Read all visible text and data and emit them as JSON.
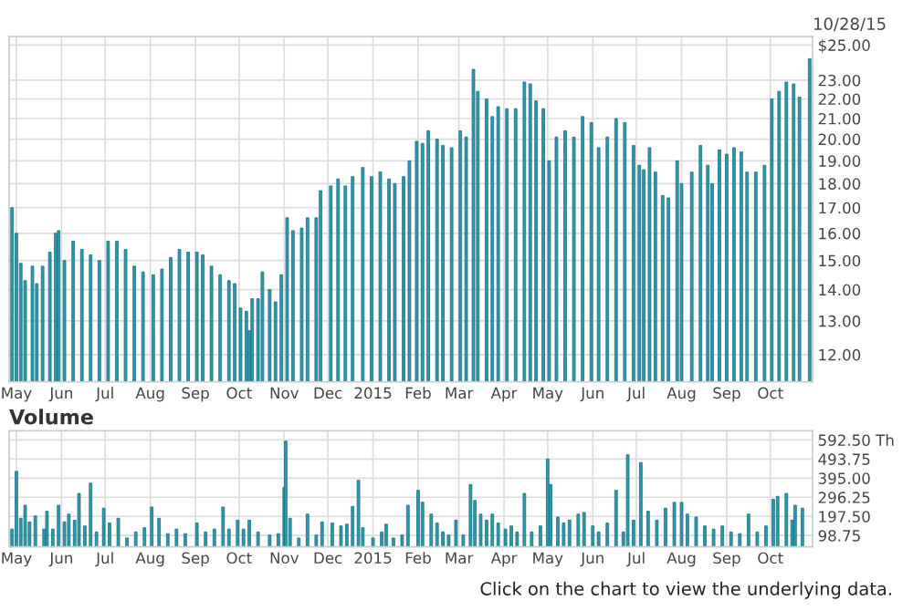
{
  "chart_data": [
    {
      "type": "bar",
      "color": "#2b9aad",
      "log": true,
      "grid": true,
      "annotations": [
        "10/28/15"
      ],
      "x": [
        "2014-04-28",
        "2014-05-01",
        "2014-05-04",
        "2014-05-07",
        "2014-05-12",
        "2014-05-15",
        "2014-05-19",
        "2014-05-24",
        "2014-05-28",
        "2014-05-30",
        "2014-06-03",
        "2014-06-09",
        "2014-06-15",
        "2014-06-21",
        "2014-06-27",
        "2014-07-03",
        "2014-07-09",
        "2014-07-15",
        "2014-07-21",
        "2014-07-27",
        "2014-08-03",
        "2014-08-09",
        "2014-08-15",
        "2014-08-21",
        "2014-08-27",
        "2014-09-02",
        "2014-09-06",
        "2014-09-12",
        "2014-09-18",
        "2014-09-24",
        "2014-09-28",
        "2014-10-02",
        "2014-10-06",
        "2014-10-08",
        "2014-10-10",
        "2014-10-14",
        "2014-10-17",
        "2014-10-22",
        "2014-10-26",
        "2014-10-30",
        "2014-11-03",
        "2014-11-07",
        "2014-11-13",
        "2014-11-17",
        "2014-11-23",
        "2014-11-26",
        "2014-12-03",
        "2014-12-08",
        "2014-12-13",
        "2014-12-18",
        "2014-12-25",
        "2014-12-31",
        "2015-01-06",
        "2015-01-12",
        "2015-01-16",
        "2015-01-22",
        "2015-01-26",
        "2015-01-31",
        "2015-02-04",
        "2015-02-08",
        "2015-02-14",
        "2015-02-18",
        "2015-02-24",
        "2015-03-02",
        "2015-03-06",
        "2015-03-11",
        "2015-03-14",
        "2015-03-20",
        "2015-03-24",
        "2015-03-28",
        "2015-04-03",
        "2015-04-09",
        "2015-04-15",
        "2015-04-19",
        "2015-04-23",
        "2015-04-28",
        "2015-05-02",
        "2015-05-07",
        "2015-05-13",
        "2015-05-19",
        "2015-05-25",
        "2015-05-31",
        "2015-06-05",
        "2015-06-11",
        "2015-06-17",
        "2015-06-23",
        "2015-06-29",
        "2015-07-03",
        "2015-07-06",
        "2015-07-10",
        "2015-07-14",
        "2015-07-19",
        "2015-07-23",
        "2015-07-29",
        "2015-08-01",
        "2015-08-08",
        "2015-08-14",
        "2015-08-19",
        "2015-08-22",
        "2015-08-27",
        "2015-09-01",
        "2015-09-06",
        "2015-09-11",
        "2015-09-15",
        "2015-09-21",
        "2015-09-27",
        "2015-10-02",
        "2015-10-07",
        "2015-10-12",
        "2015-10-17",
        "2015-10-21",
        "2015-10-28"
      ],
      "values": [
        17.0,
        16.0,
        14.9,
        14.3,
        14.8,
        14.2,
        14.8,
        15.3,
        16.0,
        16.1,
        15.0,
        15.7,
        15.4,
        15.2,
        15.0,
        15.7,
        15.7,
        15.4,
        14.8,
        14.6,
        14.5,
        14.7,
        15.1,
        15.4,
        15.3,
        15.3,
        15.2,
        14.8,
        14.5,
        14.3,
        14.2,
        13.4,
        13.3,
        12.7,
        13.7,
        13.7,
        14.6,
        14.0,
        13.6,
        14.5,
        16.6,
        16.1,
        16.2,
        16.6,
        16.6,
        17.7,
        17.9,
        18.2,
        17.9,
        18.3,
        18.7,
        18.3,
        18.5,
        18.2,
        18.0,
        18.3,
        19.0,
        19.9,
        19.8,
        20.4,
        20.0,
        19.7,
        19.6,
        20.4,
        20.1,
        23.6,
        22.4,
        22.0,
        21.1,
        21.6,
        21.5,
        21.5,
        22.9,
        22.8,
        21.9,
        21.5,
        19.0,
        20.1,
        20.4,
        20.1,
        21.1,
        20.8,
        19.6,
        20.1,
        21.0,
        20.8,
        19.7,
        18.8,
        18.6,
        19.6,
        18.5,
        17.5,
        17.4,
        19.0,
        18.0,
        18.5,
        19.7,
        18.8,
        18.0,
        19.5,
        19.3,
        19.6,
        19.4,
        18.5,
        18.5,
        18.8,
        22.0,
        22.4,
        22.9,
        22.8,
        22.1,
        24.2
      ],
      "xlim": [
        "2014-04-26",
        "2015-10-30"
      ],
      "xticks": [
        {
          "value": "2014-05-01",
          "label": "May"
        },
        {
          "value": "2014-06-01",
          "label": "Jun"
        },
        {
          "value": "2014-07-01",
          "label": "Jul"
        },
        {
          "value": "2014-08-01",
          "label": "Aug"
        },
        {
          "value": "2014-09-01",
          "label": "Sep"
        },
        {
          "value": "2014-10-01",
          "label": "Oct"
        },
        {
          "value": "2014-11-01",
          "label": "Nov"
        },
        {
          "value": "2014-12-01",
          "label": "Dec"
        },
        {
          "value": "2015-01-01",
          "label": "2015"
        },
        {
          "value": "2015-02-01",
          "label": "Feb"
        },
        {
          "value": "2015-03-01",
          "label": "Mar"
        },
        {
          "value": "2015-04-01",
          "label": "Apr"
        },
        {
          "value": "2015-05-01",
          "label": "May"
        },
        {
          "value": "2015-06-01",
          "label": "Jun"
        },
        {
          "value": "2015-07-01",
          "label": "Jul"
        },
        {
          "value": "2015-08-01",
          "label": "Aug"
        },
        {
          "value": "2015-09-01",
          "label": "Sep"
        },
        {
          "value": "2015-10-01",
          "label": "Oct"
        }
      ],
      "ylim": [
        11.25,
        25.5
      ],
      "yticks": [
        {
          "value": 25,
          "label": "$25.00"
        },
        {
          "value": 23,
          "label": "23.00"
        },
        {
          "value": 22,
          "label": "22.00"
        },
        {
          "value": 21,
          "label": "21.00"
        },
        {
          "value": 20,
          "label": "20.00"
        },
        {
          "value": 19,
          "label": "19.00"
        },
        {
          "value": 18,
          "label": "18.00"
        },
        {
          "value": 17,
          "label": "17.00"
        },
        {
          "value": 16,
          "label": "16.00"
        },
        {
          "value": 15,
          "label": "15.00"
        },
        {
          "value": 14,
          "label": "14.00"
        },
        {
          "value": 13,
          "label": "13.00"
        },
        {
          "value": 12,
          "label": "12.00"
        }
      ]
    },
    {
      "type": "bar",
      "title": "Volume",
      "color": "#2b9aad",
      "grid": true,
      "annotations": [
        "Click on the chart to view the underlying data."
      ],
      "x": [
        "2014-04-28",
        "2014-05-01",
        "2014-05-04",
        "2014-05-07",
        "2014-05-10",
        "2014-05-14",
        "2014-05-20",
        "2014-05-22",
        "2014-05-26",
        "2014-05-30",
        "2014-06-03",
        "2014-06-06",
        "2014-06-10",
        "2014-06-13",
        "2014-06-17",
        "2014-06-21",
        "2014-06-25",
        "2014-06-30",
        "2014-07-04",
        "2014-07-10",
        "2014-07-16",
        "2014-07-22",
        "2014-07-28",
        "2014-08-02",
        "2014-08-07",
        "2014-08-13",
        "2014-08-19",
        "2014-08-25",
        "2014-09-02",
        "2014-09-08",
        "2014-09-14",
        "2014-09-20",
        "2014-09-24",
        "2014-09-30",
        "2014-10-04",
        "2014-10-08",
        "2014-10-14",
        "2014-10-22",
        "2014-10-28",
        "2014-11-01",
        "2014-11-02",
        "2014-11-05",
        "2014-11-11",
        "2014-11-17",
        "2014-11-23",
        "2014-11-27",
        "2014-12-04",
        "2014-12-10",
        "2014-12-14",
        "2014-12-18",
        "2014-12-22",
        "2014-12-25",
        "2015-01-01",
        "2015-01-07",
        "2015-01-10",
        "2015-01-15",
        "2015-01-21",
        "2015-01-25",
        "2015-02-01",
        "2015-02-04",
        "2015-02-10",
        "2015-02-14",
        "2015-02-18",
        "2015-02-22",
        "2015-02-27",
        "2015-03-04",
        "2015-03-09",
        "2015-03-12",
        "2015-03-16",
        "2015-03-20",
        "2015-03-24",
        "2015-03-28",
        "2015-04-02",
        "2015-04-06",
        "2015-04-10",
        "2015-04-15",
        "2015-04-20",
        "2015-04-26",
        "2015-05-01",
        "2015-05-03",
        "2015-05-08",
        "2015-05-12",
        "2015-05-16",
        "2015-05-22",
        "2015-05-26",
        "2015-06-01",
        "2015-06-05",
        "2015-06-11",
        "2015-06-17",
        "2015-06-22",
        "2015-06-25",
        "2015-06-29",
        "2015-07-04",
        "2015-07-09",
        "2015-07-15",
        "2015-07-21",
        "2015-07-27",
        "2015-08-01",
        "2015-08-05",
        "2015-08-11",
        "2015-08-17",
        "2015-08-23",
        "2015-08-29",
        "2015-09-04",
        "2015-09-10",
        "2015-09-16",
        "2015-09-22",
        "2015-09-28",
        "2015-10-03",
        "2015-10-06",
        "2015-10-12",
        "2015-10-16",
        "2015-10-18",
        "2015-10-23"
      ],
      "values": [
        132,
        430,
        188,
        255,
        169,
        200,
        132,
        224,
        132,
        255,
        169,
        209,
        178,
        316,
        148,
        369,
        117,
        240,
        163,
        188,
        86,
        117,
        139,
        246,
        188,
        108,
        132,
        108,
        163,
        117,
        132,
        246,
        132,
        178,
        132,
        178,
        117,
        101,
        108,
        347,
        586,
        188,
        86,
        209,
        101,
        169,
        163,
        148,
        157,
        249,
        384,
        139,
        86,
        117,
        157,
        86,
        101,
        255,
        332,
        270,
        209,
        163,
        117,
        101,
        178,
        101,
        362,
        280,
        209,
        178,
        209,
        163,
        132,
        148,
        117,
        316,
        117,
        148,
        494,
        362,
        194,
        163,
        178,
        209,
        218,
        148,
        117,
        163,
        332,
        117,
        516,
        178,
        476,
        224,
        178,
        240,
        270,
        270,
        209,
        194,
        148,
        132,
        148,
        117,
        108,
        209,
        117,
        148,
        286,
        301,
        316,
        178,
        255,
        240
      ],
      "xlim": [
        "2014-04-26",
        "2015-10-30"
      ],
      "xticks": [
        {
          "value": "2014-05-01",
          "label": "May"
        },
        {
          "value": "2014-06-01",
          "label": "Jun"
        },
        {
          "value": "2014-07-01",
          "label": "Jul"
        },
        {
          "value": "2014-08-01",
          "label": "Aug"
        },
        {
          "value": "2014-09-01",
          "label": "Sep"
        },
        {
          "value": "2014-10-01",
          "label": "Oct"
        },
        {
          "value": "2014-11-01",
          "label": "Nov"
        },
        {
          "value": "2014-12-01",
          "label": "Dec"
        },
        {
          "value": "2015-01-01",
          "label": "2015"
        },
        {
          "value": "2015-02-01",
          "label": "Feb"
        },
        {
          "value": "2015-03-01",
          "label": "Mar"
        },
        {
          "value": "2015-04-01",
          "label": "Apr"
        },
        {
          "value": "2015-05-01",
          "label": "May"
        },
        {
          "value": "2015-06-01",
          "label": "Jun"
        },
        {
          "value": "2015-07-01",
          "label": "Jul"
        },
        {
          "value": "2015-08-01",
          "label": "Aug"
        },
        {
          "value": "2015-09-01",
          "label": "Sep"
        },
        {
          "value": "2015-10-01",
          "label": "Oct"
        }
      ],
      "ylim": [
        40,
        640
      ],
      "yticks": [
        {
          "value": 592.5,
          "label": "592.50 Th"
        },
        {
          "value": 493.75,
          "label": "493.75"
        },
        {
          "value": 395,
          "label": "395.00"
        },
        {
          "value": 296.25,
          "label": "296.25"
        },
        {
          "value": 197.5,
          "label": "197.50"
        },
        {
          "value": 98.75,
          "label": "98.75"
        }
      ]
    }
  ]
}
